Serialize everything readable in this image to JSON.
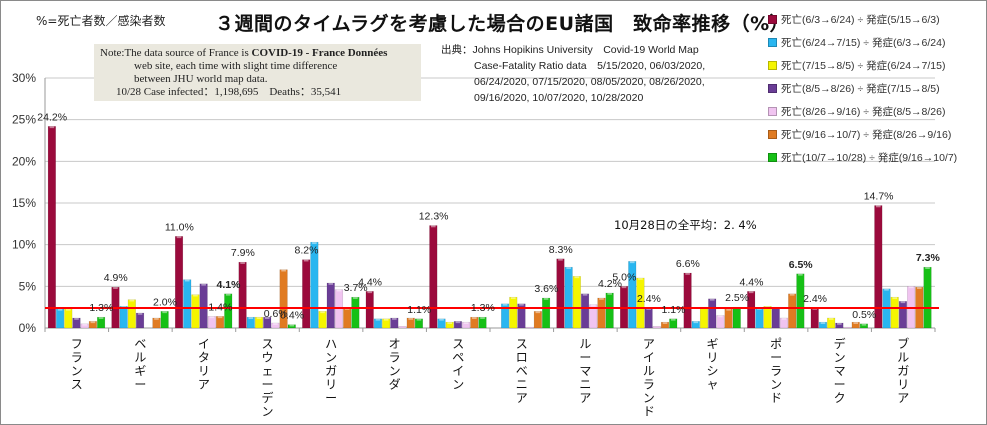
{
  "header": {
    "formula_note": "%=死亡者数／感染者数",
    "title": "３週間のタイムラグを考慮した場合のEU諸国　致命率推移（%）"
  },
  "note_box": {
    "line1_prefix": "Note:The data source of France is ",
    "line1_bold": "COVID-19 - France Données",
    "line2": "web site, each time with slight time difference",
    "line3": "between JHU world map data.",
    "line4": "10/28 Case infected：1,198,695　Deaths：35,541"
  },
  "source": {
    "line1": "出典：Johns Hopikins University　Covid-19 World Map",
    "line2": "Case-Fatality Ratio data　5/15/2020, 06/03/2020,",
    "line3": "06/24/2020, 07/15/2020, 08/05/2020, 08/26/2020,",
    "line4": "09/16/2020, 10/07/2020, 10/28/2020"
  },
  "average_label": "10月28日の全平均：2. 4%",
  "chart_data": {
    "type": "bar",
    "title": "３週間のタイムラグを考慮した場合のEU諸国　致命率推移（%）",
    "xlabel": "",
    "ylabel": "",
    "ylim": [
      0,
      30
    ],
    "yticks": [
      "0%",
      "5%",
      "10%",
      "15%",
      "20%",
      "25%",
      "30%"
    ],
    "ytick_values": [
      0,
      5,
      10,
      15,
      20,
      25,
      30
    ],
    "grid": true,
    "legend_position": "right",
    "average_line": 2.4,
    "average_line_color": "#ff0000",
    "categories": [
      "フランス",
      "ベルギー",
      "イタリア",
      "スウェーデン",
      "ハンガリー",
      "オランダ",
      "スペイン",
      "スロベニア",
      "ルーマニア",
      "アイルランド",
      "ギリシャ",
      "ポーランド",
      "デンマーク",
      "ブルガリア"
    ],
    "series": [
      {
        "name": "死亡(6/3→6/24) ÷ 発症(5/15→6/3)",
        "color": "#9b0a3c",
        "values": [
          24.2,
          4.9,
          11.0,
          7.9,
          8.2,
          4.4,
          12.3,
          0,
          8.3,
          5.0,
          6.6,
          4.4,
          2.4,
          14.7
        ]
      },
      {
        "name": "死亡(6/24→7/15) ÷ 発症(6/3→6/24)",
        "color": "#29b6f0",
        "values": [
          2.3,
          2.6,
          5.8,
          1.3,
          10.3,
          1.1,
          1.1,
          2.9,
          7.3,
          8.0,
          0.8,
          2.4,
          0.7,
          4.7
        ]
      },
      {
        "name": "死亡(7/15→8/5) ÷ 発症(6/24→7/15)",
        "color": "#f5f500",
        "values": [
          2.3,
          3.4,
          4.0,
          1.3,
          2.0,
          1.1,
          0.7,
          3.7,
          6.2,
          6.0,
          2.5,
          2.6,
          1.2,
          3.7
        ]
      },
      {
        "name": "死亡(8/5→8/26) ÷ 発症(7/15→8/5)",
        "color": "#6a3d96",
        "values": [
          1.2,
          1.8,
          5.3,
          1.3,
          5.4,
          1.2,
          0.8,
          2.9,
          4.1,
          2.4,
          3.5,
          2.5,
          0.6,
          3.2
        ]
      },
      {
        "name": "死亡(8/26→9/16) ÷ 発症(8/5→8/26)",
        "color": "#f0c4f0",
        "values": [
          0.5,
          0,
          1.4,
          0.6,
          4.6,
          0.2,
          0.7,
          0.1,
          2.8,
          0.2,
          1.5,
          1.2,
          0.1,
          5.0
        ]
      },
      {
        "name": "死亡(9/16→10/7) ÷ 発症(8/26→9/16)",
        "color": "#e07b22",
        "values": [
          0.8,
          1.2,
          1.4,
          7.0,
          2.4,
          1.2,
          1.3,
          2.0,
          3.6,
          0.7,
          2.3,
          4.1,
          0.7,
          4.9
        ]
      },
      {
        "name": "死亡(10/7→10/28) ÷ 発症(9/16→10/7)",
        "color": "#16c016",
        "values": [
          1.3,
          2.0,
          4.1,
          0.4,
          3.7,
          1.1,
          1.3,
          3.6,
          4.2,
          1.1,
          2.5,
          6.5,
          0.5,
          7.3
        ]
      }
    ],
    "data_labels": [
      {
        "text": "24.2%",
        "category": 0,
        "series": 0,
        "bold": false
      },
      {
        "text": "1.3%",
        "category": 0,
        "series": 6,
        "bold": false
      },
      {
        "text": "4.9%",
        "category": 1,
        "series": 0,
        "bold": false
      },
      {
        "text": "2.0%",
        "category": 1,
        "series": 6,
        "bold": false
      },
      {
        "text": "11.0%",
        "category": 2,
        "series": 0,
        "bold": false
      },
      {
        "text": "1.4%",
        "category": 2,
        "series": 5,
        "bold": false
      },
      {
        "text": "4.1%",
        "category": 2,
        "series": 6,
        "bold": true
      },
      {
        "text": "7.9%",
        "category": 3,
        "series": 0,
        "bold": false
      },
      {
        "text": "0.6%",
        "category": 3,
        "series": 4,
        "bold": false
      },
      {
        "text": "0.4%",
        "category": 3,
        "series": 6,
        "bold": false
      },
      {
        "text": "8.2%",
        "category": 4,
        "series": 0,
        "bold": false
      },
      {
        "text": "3.7%",
        "category": 4,
        "series": 6,
        "bold": false
      },
      {
        "text": "4.4%",
        "category": 5,
        "series": 0,
        "bold": false
      },
      {
        "text": "1.1%",
        "category": 5,
        "series": 6,
        "bold": false
      },
      {
        "text": "12.3%",
        "category": 6,
        "series": 0,
        "bold": false
      },
      {
        "text": "1.3%",
        "category": 6,
        "series": 6,
        "bold": false
      },
      {
        "text": "3.6%",
        "category": 7,
        "series": 6,
        "bold": false
      },
      {
        "text": "8.3%",
        "category": 8,
        "series": 0,
        "bold": false
      },
      {
        "text": "4.2%",
        "category": 8,
        "series": 6,
        "bold": false
      },
      {
        "text": "5.0%",
        "category": 9,
        "series": 0,
        "bold": false
      },
      {
        "text": "2.4%",
        "category": 9,
        "series": 3,
        "bold": false
      },
      {
        "text": "1.1%",
        "category": 9,
        "series": 6,
        "bold": false
      },
      {
        "text": "6.6%",
        "category": 10,
        "series": 0,
        "bold": false
      },
      {
        "text": "2.5%",
        "category": 10,
        "series": 6,
        "bold": false
      },
      {
        "text": "4.4%",
        "category": 11,
        "series": 0,
        "bold": false
      },
      {
        "text": "6.5%",
        "category": 11,
        "series": 6,
        "bold": true
      },
      {
        "text": "2.4%",
        "category": 12,
        "series": 0,
        "bold": false
      },
      {
        "text": "0.5%",
        "category": 12,
        "series": 6,
        "bold": false
      },
      {
        "text": "14.7%",
        "category": 13,
        "series": 0,
        "bold": false
      },
      {
        "text": "7.3%",
        "category": 13,
        "series": 6,
        "bold": true
      }
    ]
  }
}
